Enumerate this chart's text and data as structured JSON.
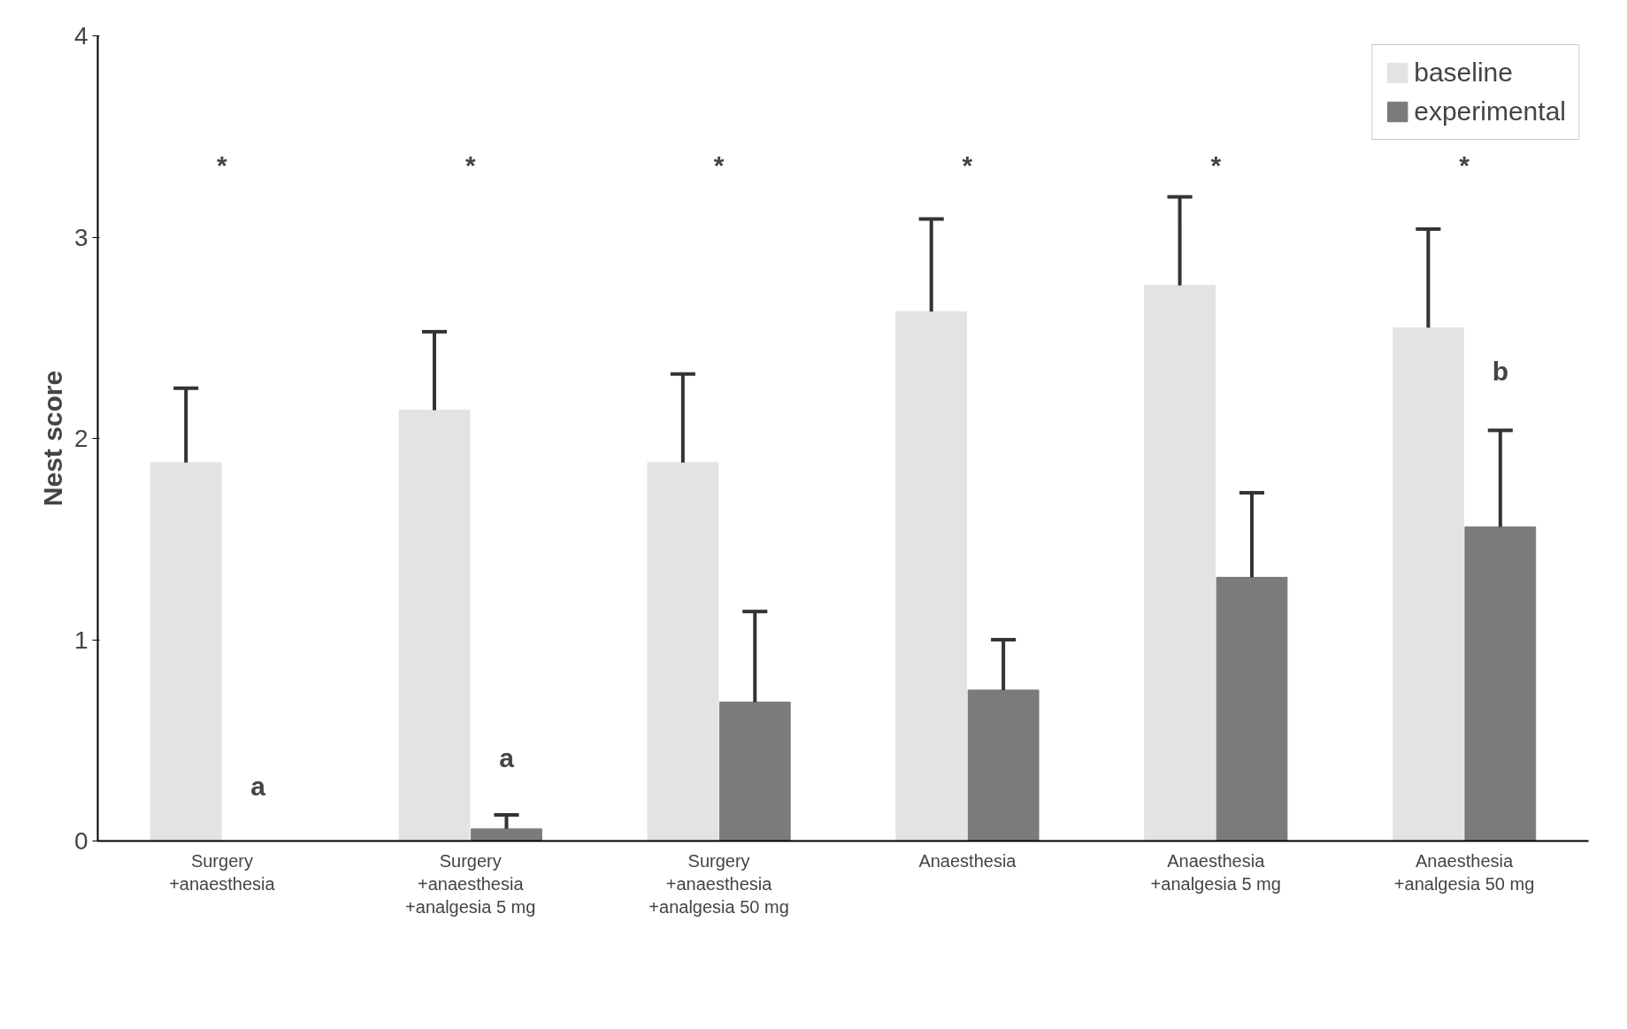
{
  "chart_data": {
    "type": "bar",
    "ylabel": "Nest score",
    "categories": [
      "Surgery\n+anaesthesia",
      "Surgery\n+anaesthesia\n+analgesia 5 mg",
      "Surgery\n+anaesthesia\n+analgesia 50 mg",
      "Anaesthesia",
      "Anaesthesia\n+analgesia 5 mg",
      "Anaesthesia\n+analgesia 50 mg"
    ],
    "series": [
      {
        "name": "baseline",
        "color": "#e3e3e3",
        "values": [
          1.88,
          2.14,
          1.88,
          2.63,
          2.76,
          2.55
        ],
        "errors": [
          [
            1.88,
            2.25
          ],
          [
            2.14,
            2.53
          ],
          [
            1.88,
            2.32
          ],
          [
            2.63,
            3.09
          ],
          [
            2.76,
            3.2
          ],
          [
            2.55,
            3.04
          ]
        ]
      },
      {
        "name": "experimental",
        "color": "#7b7b7d",
        "values": [
          0,
          0.06,
          0.69,
          0.75,
          1.31,
          1.56
        ],
        "errors": [
          null,
          [
            0.06,
            0.13
          ],
          [
            0.69,
            1.14
          ],
          [
            0.75,
            1.0
          ],
          [
            1.31,
            1.73
          ],
          [
            1.56,
            2.04
          ]
        ]
      }
    ],
    "ylim": [
      0,
      4
    ],
    "yticks": [
      0,
      1,
      2,
      3,
      4
    ],
    "grid": false,
    "legend": "top right",
    "annotations": [
      "*",
      "*",
      "*",
      "*",
      "*",
      "*",
      {
        "text": "a",
        "x": "Surgery\n+anaesthesia",
        "y": 0.2
      },
      {
        "text": "a",
        "x": "Surgery\n+anaesthesia\n+analgesia 5 mg",
        "y": 0.34
      },
      {
        "text": "b",
        "x": "Anaesthesia\n+analgesia 50 mg",
        "y": 2.26
      }
    ]
  }
}
